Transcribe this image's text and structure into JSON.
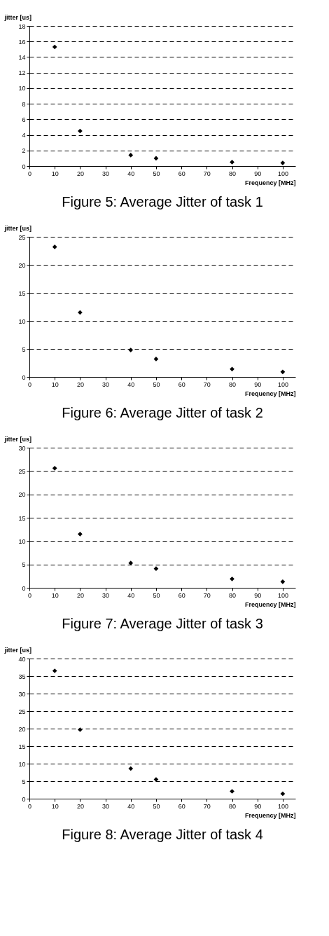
{
  "chart_data": [
    {
      "type": "scatter",
      "title": "Figure 5: Average Jitter of task 1",
      "xlabel": "Frequency [MHz]",
      "ylabel": "jitter [us]",
      "x": [
        10,
        20,
        40,
        50,
        80,
        100
      ],
      "series": [
        {
          "color": "#000000",
          "values": [
            15.3,
            4.5,
            1.4,
            1.0,
            0.5,
            0.4
          ]
        }
      ],
      "xlim": [
        0,
        105
      ],
      "xticks": [
        0,
        10,
        20,
        30,
        40,
        50,
        60,
        70,
        80,
        90,
        100
      ],
      "ylim": [
        0,
        18
      ],
      "yticks": [
        0,
        2,
        4,
        6,
        8,
        10,
        12,
        14,
        16,
        18
      ],
      "grid": "y",
      "marker": "diamond"
    },
    {
      "type": "scatter",
      "title": "Figure 6: Average Jitter of task 2",
      "xlabel": "Frequency [MHz]",
      "ylabel": "jitter [us]",
      "x": [
        10,
        20,
        40,
        50,
        80,
        100
      ],
      "series": [
        {
          "color": "#000000",
          "values": [
            23.2,
            11.5,
            4.8,
            3.2,
            1.4,
            0.9
          ]
        }
      ],
      "xlim": [
        0,
        105
      ],
      "xticks": [
        0,
        10,
        20,
        30,
        40,
        50,
        60,
        70,
        80,
        90,
        100
      ],
      "ylim": [
        0,
        25
      ],
      "yticks": [
        0,
        5,
        10,
        15,
        20,
        25
      ],
      "grid": "y",
      "marker": "diamond"
    },
    {
      "type": "scatter",
      "title": "Figure 7: Average Jitter of task 3",
      "xlabel": "Frequency [MHz]",
      "ylabel": "jitter [us]",
      "x": [
        10,
        20,
        40,
        50,
        80,
        100
      ],
      "series": [
        {
          "color": "#000000",
          "values": [
            25.6,
            11.5,
            5.3,
            4.1,
            1.9,
            1.3
          ]
        }
      ],
      "xlim": [
        0,
        105
      ],
      "xticks": [
        0,
        10,
        20,
        30,
        40,
        50,
        60,
        70,
        80,
        90,
        100
      ],
      "ylim": [
        0,
        30
      ],
      "yticks": [
        0,
        5,
        10,
        15,
        20,
        25,
        30
      ],
      "grid": "y",
      "marker": "diamond"
    },
    {
      "type": "scatter",
      "title": "Figure 8: Average Jitter of task 4",
      "xlabel": "Frequency [MHz]",
      "ylabel": "jitter [us]",
      "x": [
        10,
        20,
        40,
        50,
        80,
        100
      ],
      "series": [
        {
          "color": "#000000",
          "values": [
            36.5,
            19.7,
            8.6,
            5.5,
            2.1,
            1.4
          ]
        }
      ],
      "xlim": [
        0,
        105
      ],
      "xticks": [
        0,
        10,
        20,
        30,
        40,
        50,
        60,
        70,
        80,
        90,
        100
      ],
      "ylim": [
        0,
        40
      ],
      "yticks": [
        0,
        5,
        10,
        15,
        20,
        25,
        30,
        35,
        40
      ],
      "grid": "y",
      "marker": "diamond"
    }
  ]
}
